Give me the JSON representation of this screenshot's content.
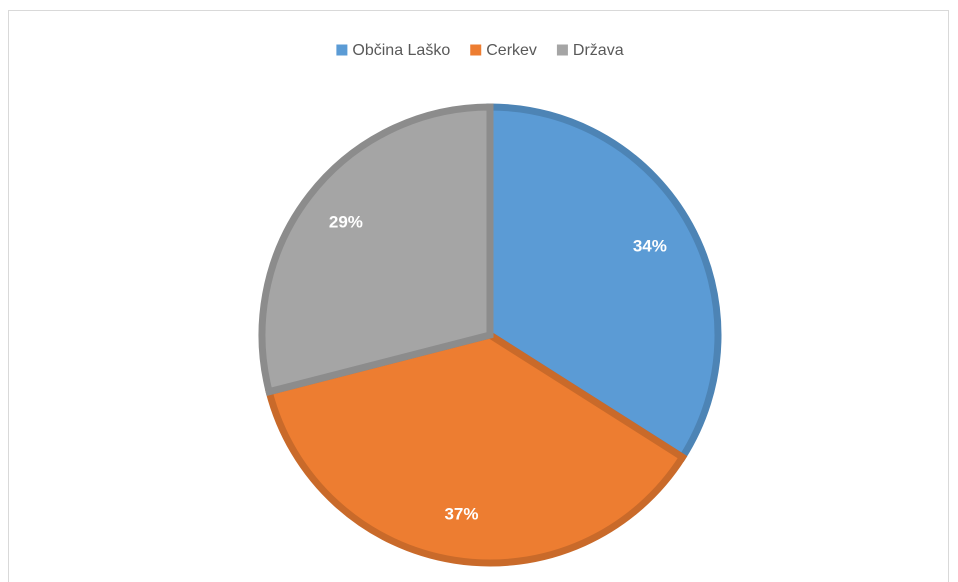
{
  "chart_data": {
    "type": "pie",
    "categories": [
      "Občina Laško",
      "Cerkev",
      "Država"
    ],
    "values": [
      34,
      37,
      29
    ],
    "value_labels": [
      "34%",
      "37%",
      "29%"
    ],
    "colors": [
      "#5b9bd5",
      "#ed7d31",
      "#a5a5a5"
    ],
    "legend": "top"
  }
}
